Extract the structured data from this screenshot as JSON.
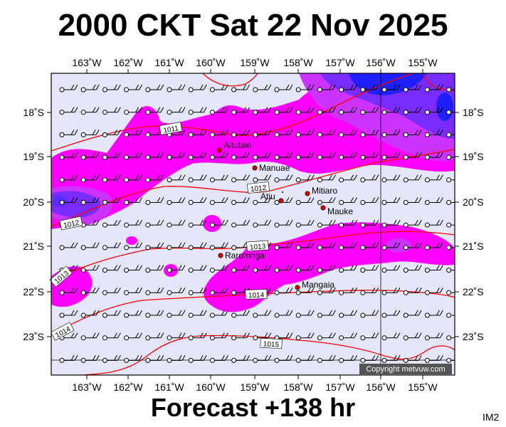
{
  "title": "2000 CKT Sat 22 Nov 2025",
  "footer": "Forecast +138 hr",
  "product_code": "IM2",
  "copyright": "Copyright metvuw.com",
  "colors": {
    "background": "#e6e6fa",
    "precip_light": "#ff00ff",
    "precip_medium": "#cc33ff",
    "precip_heavy": "#7a2cff",
    "precip_extreme": "#2020ff",
    "isobar": "#ff0000",
    "marker": "#e00000"
  },
  "axes": {
    "lon_labels": [
      "163˚W",
      "162˚W",
      "161˚W",
      "160˚W",
      "159˚W",
      "158˚W",
      "157˚W",
      "156˚W",
      "155˚W"
    ],
    "lat_labels": [
      "18˚S",
      "19˚S",
      "20˚S",
      "21˚S",
      "22˚S",
      "23˚S"
    ]
  },
  "isobar_labels": [
    "1011",
    "1012",
    "1012",
    "1013",
    "1013",
    "1014",
    "1014",
    "1015"
  ],
  "places": [
    {
      "name": "Aitutaki"
    },
    {
      "name": "Manuae"
    },
    {
      "name": "Mitiaro"
    },
    {
      "name": "Atiu"
    },
    {
      "name": "Mauke"
    },
    {
      "name": "Rarotonga"
    },
    {
      "name": "Mangaia"
    }
  ]
}
